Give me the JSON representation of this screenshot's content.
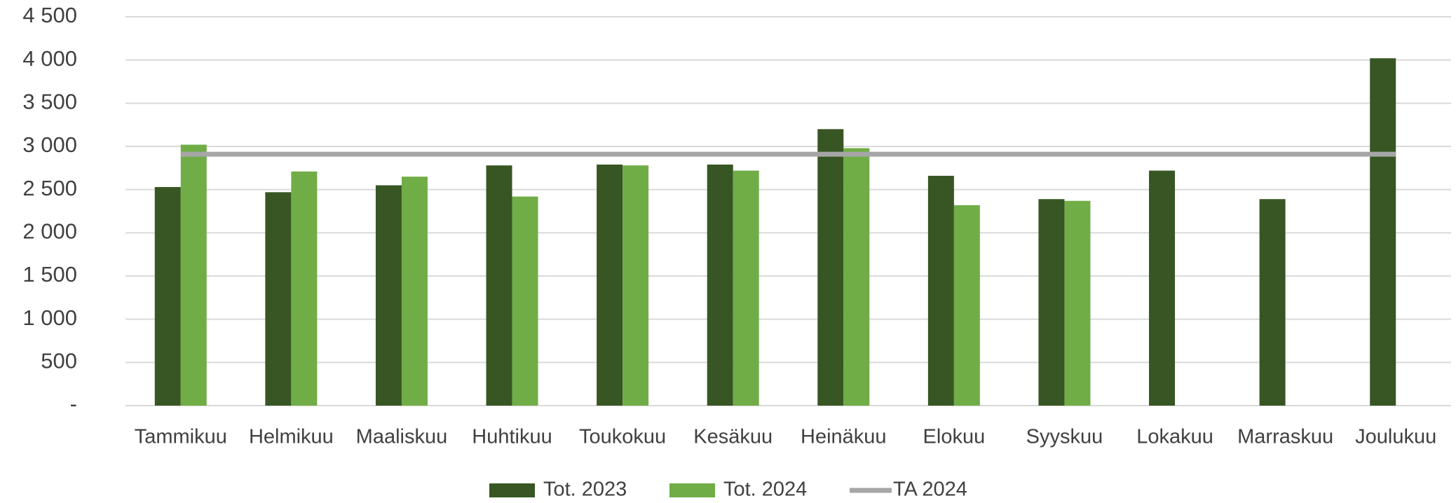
{
  "chart_data": {
    "type": "bar",
    "categories": [
      "Tammikuu",
      "Helmikuu",
      "Maaliskuu",
      "Huhtikuu",
      "Toukokuu",
      "Kesäkuu",
      "Heinäkuu",
      "Elokuu",
      "Syyskuu",
      "Lokakuu",
      "Marraskuu",
      "Joulukuu"
    ],
    "series": [
      {
        "name": "Tot. 2023",
        "color": "#375623",
        "type": "bar",
        "values": [
          2530,
          2470,
          2550,
          2780,
          2790,
          2790,
          3200,
          2660,
          2390,
          2720,
          2390,
          4020
        ]
      },
      {
        "name": "Tot. 2024",
        "color": "#70ad47",
        "type": "bar",
        "values": [
          3020,
          2710,
          2650,
          2420,
          2780,
          2720,
          2980,
          2320,
          2370,
          null,
          null,
          null
        ]
      },
      {
        "name": "TA 2024",
        "color": "#a6a6a6",
        "type": "line",
        "values": [
          2910,
          2910,
          2910,
          2910,
          2910,
          2910,
          2910,
          2910,
          2910,
          2910,
          2910,
          2910
        ]
      }
    ],
    "ylim": [
      0,
      4500
    ],
    "yticks": [
      {
        "value": 0,
        "label": "-"
      },
      500,
      {
        "value": 1000,
        "label": "1 000"
      },
      {
        "value": 1500,
        "label": "1 500"
      },
      {
        "value": 2000,
        "label": "2 000"
      },
      {
        "value": 2500,
        "label": "2 500"
      },
      {
        "value": 3000,
        "label": "3 000"
      },
      {
        "value": 3500,
        "label": "3 500"
      },
      {
        "value": 4000,
        "label": "4 000"
      },
      {
        "value": 4500,
        "label": "4 500"
      }
    ],
    "grid": true,
    "legend": "bottom"
  }
}
